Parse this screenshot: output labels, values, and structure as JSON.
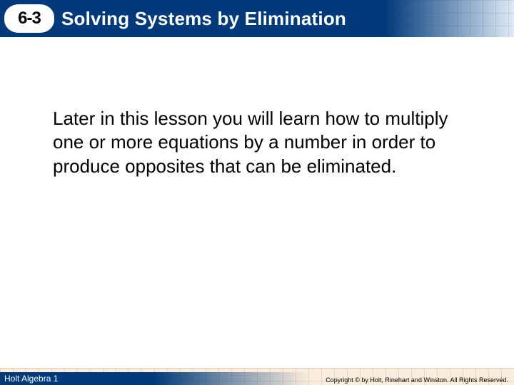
{
  "header": {
    "lesson_number": "6-3",
    "title": "Solving Systems by Elimination"
  },
  "body": {
    "paragraph": "Later in this lesson you will learn how to multiply one or more equations by a number in order to produce opposites that can be eliminated."
  },
  "footer": {
    "brand": "Holt Algebra 1",
    "copyright": "Copyright © by Holt, Rinehart and Winston. All Rights Reserved."
  },
  "colors": {
    "header_bg": "#003a7a",
    "badge_bg": "#ffffff",
    "grid_top": "#c3d9ec",
    "grid_bottom": "#f0d9b8",
    "text": "#000000"
  }
}
